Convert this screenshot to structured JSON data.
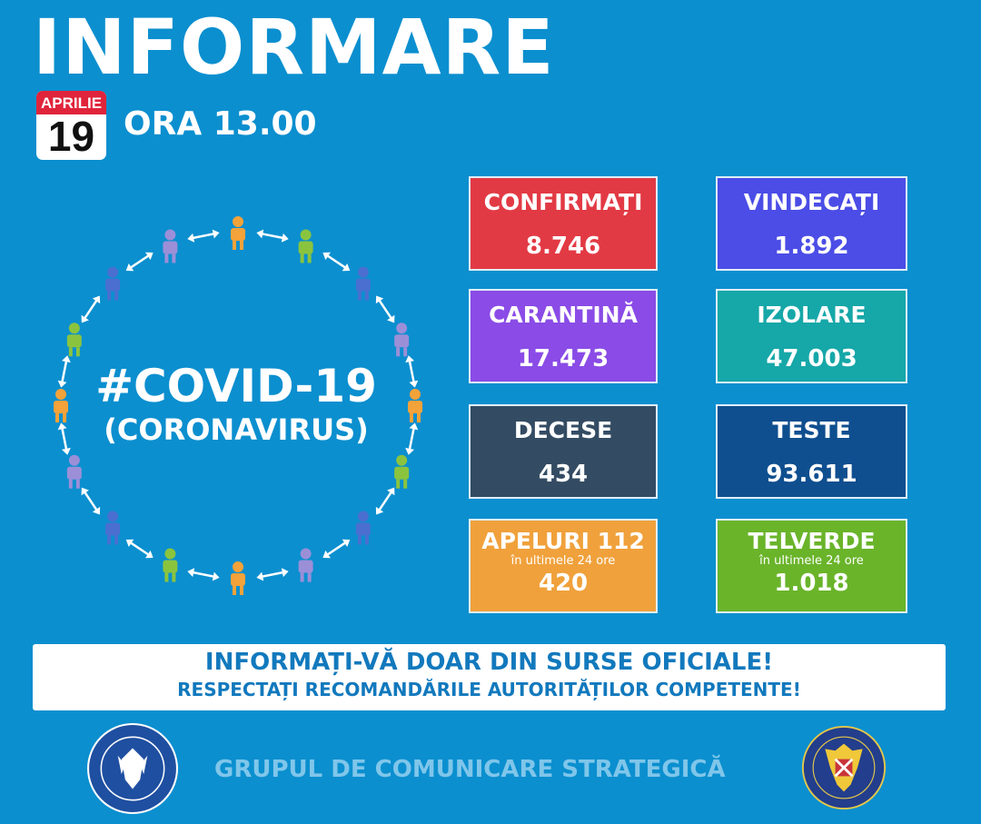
{
  "header": {
    "title": "INFORMARE",
    "calendar_month": "APRILIE",
    "calendar_day": "19",
    "time": "ORA 13.00"
  },
  "hashtag": {
    "main": "#COVID-19",
    "sub": "(CORONAVIRUS)"
  },
  "stats": [
    {
      "label": "CONFIRMAȚI",
      "value": "8.746",
      "color": "#e23a44"
    },
    {
      "label": "VINDECAȚI",
      "value": "1.892",
      "color": "#4b4de6"
    },
    {
      "label": "CARANTINĂ",
      "value": "17.473",
      "color": "#8a4be6"
    },
    {
      "label": "IZOLARE",
      "value": "47.003",
      "color": "#16a7a8"
    },
    {
      "label": "DECESE",
      "value": "434",
      "color": "#344c63"
    },
    {
      "label": "TESTE",
      "value": "93.611",
      "color": "#0f4f8f"
    },
    {
      "label": "APELURI 112",
      "sublabel": "în ultimele 24 ore",
      "value": "420",
      "color": "#f0a13b"
    },
    {
      "label": "TELVERDE",
      "sublabel": "în ultimele 24 ore",
      "value": "1.018",
      "color": "#6ab42a"
    }
  ],
  "banner": {
    "line1": "INFORMAȚI-VĂ DOAR DIN SURSE OFICIALE!",
    "line2": "RESPECTAȚI RECOMANDĂRILE AUTORITĂȚILOR COMPETENTE!"
  },
  "footer": {
    "text": "GRUPUL DE COMUNICARE STRATEGICĂ"
  },
  "logos": {
    "left": "GUVERNUL ROMÂNIEI",
    "right": "DEPARTAMENTUL PENTRU SITUAȚII DE URGENȚĂ · M.A.I."
  },
  "colors": {
    "background": "#0b8fcf",
    "banner_text": "#1279bd",
    "figures": [
      "#f4a23a",
      "#8ac43f",
      "#4a6fd0",
      "#9b8fd8"
    ]
  }
}
